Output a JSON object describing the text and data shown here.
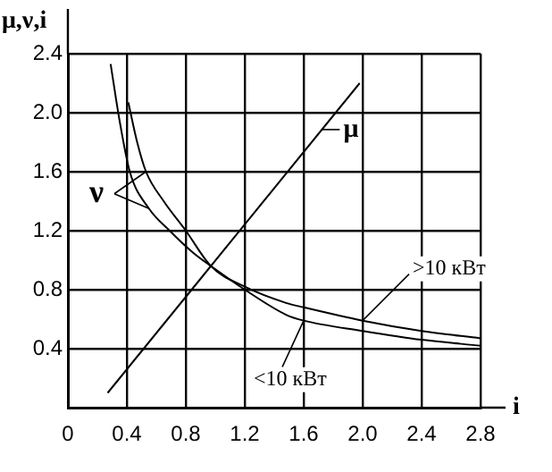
{
  "chart_data": {
    "type": "line",
    "xlabel": "i",
    "ylabel": "μ,ν,i",
    "xlim": [
      0,
      2.8
    ],
    "ylim": [
      0,
      2.4
    ],
    "xticks": [
      0,
      0.4,
      0.8,
      1.2,
      1.6,
      {
        "value": 2,
        "label": "2.0"
      },
      2.4,
      2.8
    ],
    "yticks": [
      {
        "value": 0,
        "label": null
      },
      0.4,
      0.8,
      1.2,
      1.6,
      {
        "value": 2,
        "label": "2.0"
      },
      2.4
    ],
    "grid": true,
    "marker": "none",
    "line_style": "solid",
    "annotations": [
      "ν"
    ],
    "series": [
      {
        "name": "μ",
        "color": "#000000",
        "x": [
          0.27,
          1.98
        ],
        "values": [
          0.1,
          2.2
        ]
      },
      {
        "name": "<10 кВт",
        "color": "#000000",
        "x": [
          0.29,
          0.35,
          0.42,
          0.55,
          0.69,
          0.85,
          0.97,
          1.2,
          1.48,
          1.6,
          2.0,
          2.4,
          2.8
        ],
        "values": [
          2.33,
          1.95,
          1.6,
          1.35,
          1.2,
          1.05,
          0.96,
          0.8,
          0.63,
          0.59,
          0.52,
          0.46,
          0.42
        ]
      },
      {
        "name": ">10 кВт",
        "color": "#000000",
        "x": [
          0.41,
          0.47,
          0.53,
          0.65,
          0.8,
          0.97,
          1.2,
          1.48,
          1.6,
          2.0,
          2.4,
          2.8
        ],
        "values": [
          2.07,
          1.8,
          1.6,
          1.4,
          1.2,
          0.96,
          0.82,
          0.71,
          0.68,
          0.59,
          0.52,
          0.47
        ]
      }
    ]
  }
}
